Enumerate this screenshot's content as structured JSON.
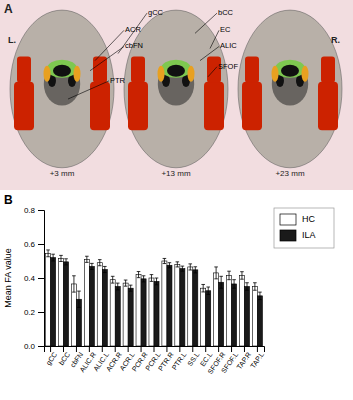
{
  "chart_data": {
    "type": "bar",
    "categories": [
      "gCC",
      "bCC",
      "cbFN",
      "ALIC.R",
      "ALIC.L",
      "ACR.R",
      "ACR.L",
      "PCR.R",
      "PCR.L",
      "PTR.R",
      "PTR.L",
      "SS.L",
      "EC.L",
      "SFOF.R",
      "SFOF.L",
      "TAP.R",
      "TAP.L"
    ],
    "series": [
      {
        "name": "HC",
        "color": "#ffffff",
        "values": [
          0.545,
          0.515,
          0.365,
          0.51,
          0.49,
          0.39,
          0.37,
          0.42,
          0.4,
          0.5,
          0.48,
          0.465,
          0.34,
          0.43,
          0.415,
          0.415,
          0.35
        ],
        "errors": [
          0.02,
          0.018,
          0.048,
          0.018,
          0.018,
          0.02,
          0.018,
          0.018,
          0.02,
          0.015,
          0.015,
          0.018,
          0.022,
          0.035,
          0.025,
          0.022,
          0.022
        ]
      },
      {
        "name": "ILA",
        "color": "#1a1a1a",
        "values": [
          0.52,
          0.495,
          0.275,
          0.468,
          0.45,
          0.35,
          0.34,
          0.395,
          0.38,
          0.475,
          0.455,
          0.448,
          0.325,
          0.375,
          0.365,
          0.35,
          0.295
        ],
        "errors": [
          0.02,
          0.018,
          0.048,
          0.018,
          0.018,
          0.02,
          0.018,
          0.018,
          0.02,
          0.015,
          0.015,
          0.018,
          0.022,
          0.035,
          0.025,
          0.022,
          0.022
        ]
      }
    ],
    "ylabel": "Mean FA value",
    "ylim": [
      0.0,
      0.8
    ],
    "yticks": [
      {
        "value": 0,
        "label": "0.0"
      },
      0.2,
      0.4,
      0.6,
      0.8
    ],
    "grid": false,
    "legend": "upper right",
    "annotations": [
      "A",
      "L.",
      "R.",
      "+3 mm",
      "+13 mm",
      "+23 mm",
      "gCC",
      "ACR",
      "cbFN",
      "PTR",
      "bCC",
      "EC",
      "ALIC",
      "SFOF",
      "B"
    ]
  }
}
